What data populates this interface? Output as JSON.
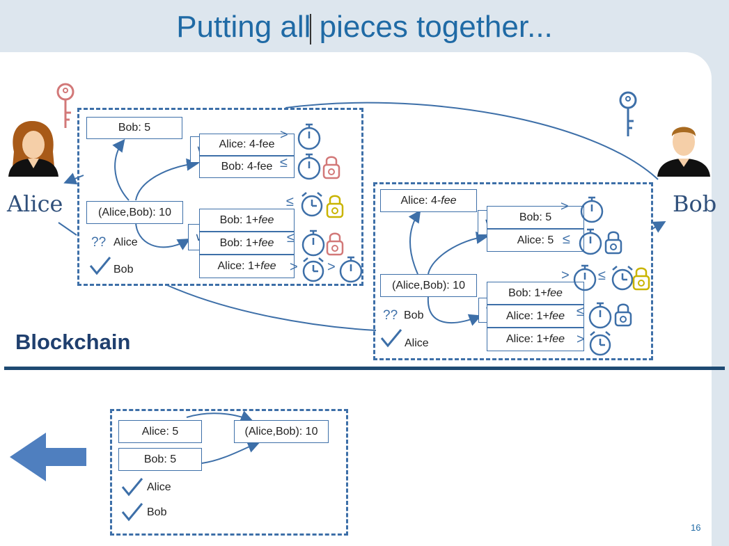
{
  "title": "Putting all pieces together...",
  "parties": {
    "alice": "Alice",
    "bob": "Bob"
  },
  "section_label": "Blockchain",
  "page_number": "16",
  "alice_tx": {
    "top_output": "Bob: 5",
    "funding": "(Alice,Bob): 10",
    "or_symbol": "∨",
    "branch1": [
      "Alice: 4-fee",
      "Bob: 4-fee"
    ],
    "branch2": [
      {
        "prefix": "Bob: 1+",
        "emph": "fee"
      },
      {
        "prefix": "Bob: 1+",
        "emph": "fee"
      }
    ],
    "branch3": {
      "prefix": "Alice: 1+",
      "emph": "fee"
    },
    "signatures": {
      "pending": "??",
      "pending_name": "Alice",
      "signed_name": "Bob"
    }
  },
  "bob_tx": {
    "top_output": {
      "prefix": "Alice: 4-",
      "emph": "fee"
    },
    "funding": "(Alice,Bob): 10",
    "or_symbol": "∨",
    "branch1": [
      "Bob: 5",
      "Alice: 5"
    ],
    "branch2": [
      {
        "prefix": "Bob: 1+",
        "emph": "fee"
      },
      {
        "prefix": "Alice: 1+",
        "emph": "fee"
      }
    ],
    "branch3": {
      "prefix": "Alice: 1+",
      "emph": "fee"
    },
    "signatures": {
      "pending": "??",
      "pending_name": "Bob",
      "signed_name": "Alice"
    }
  },
  "funding_tx": {
    "inputs": [
      "Alice: 5",
      "Bob:  5"
    ],
    "output": "(Alice,Bob): 10",
    "signers": [
      "Alice",
      "Bob"
    ]
  },
  "relations": {
    "gt": ">",
    "le": "≤"
  },
  "colors": {
    "accent": "#3d6fa8",
    "title": "#1f6aa5",
    "alice_lock": "#d27878",
    "gold_lock": "#c9b400"
  },
  "icons": [
    "alice-avatar",
    "bob-avatar",
    "key-icon",
    "stopwatch-icon",
    "alarm-clock-icon",
    "padlock-icon",
    "checkmark-icon",
    "left-arrow-icon"
  ]
}
